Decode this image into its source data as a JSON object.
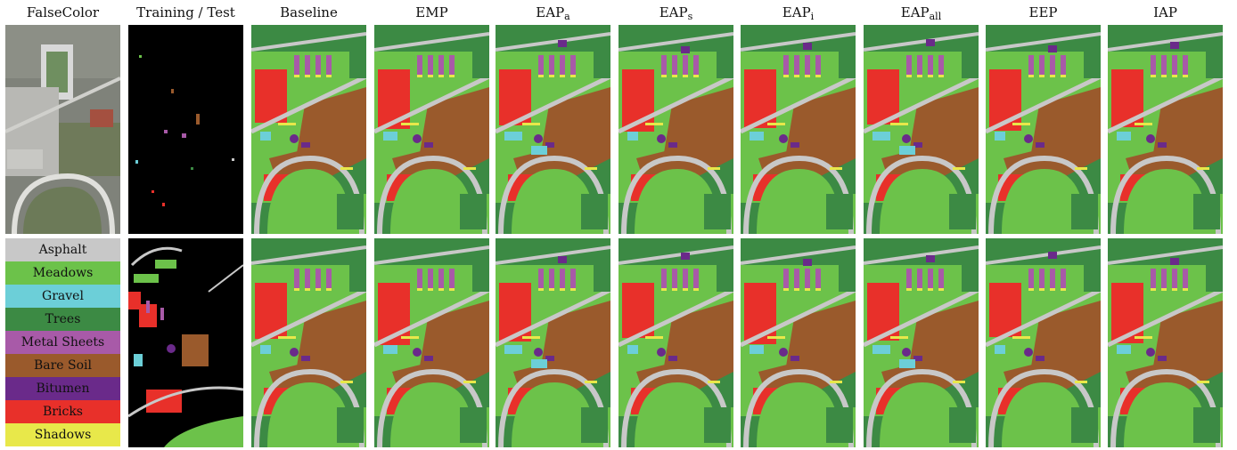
{
  "headers": [
    {
      "text": "FalseColor",
      "sub": ""
    },
    {
      "text": "Training / Test",
      "sub": ""
    },
    {
      "text": "Baseline",
      "sub": ""
    },
    {
      "text": "EMP",
      "sub": ""
    },
    {
      "text": "EAP",
      "sub": "a"
    },
    {
      "text": "EAP",
      "sub": "s"
    },
    {
      "text": "EAP",
      "sub": "i"
    },
    {
      "text": "EAP",
      "sub": "all"
    },
    {
      "text": "EEP",
      "sub": ""
    },
    {
      "text": "IAP",
      "sub": ""
    }
  ],
  "legend": [
    {
      "label": "Asphalt",
      "color": "#c8c8c8"
    },
    {
      "label": "Meadows",
      "color": "#6cc24a"
    },
    {
      "label": "Gravel",
      "color": "#6ccfd8"
    },
    {
      "label": "Trees",
      "color": "#3c8a44"
    },
    {
      "label": "Metal Sheets",
      "color": "#a85aa8"
    },
    {
      "label": "Bare Soil",
      "color": "#9a5a2c"
    },
    {
      "label": "Bitumen",
      "color": "#6a2a8a"
    },
    {
      "label": "Bricks",
      "color": "#e8302a"
    },
    {
      "label": "Shadows",
      "color": "#e8e84a"
    }
  ]
}
